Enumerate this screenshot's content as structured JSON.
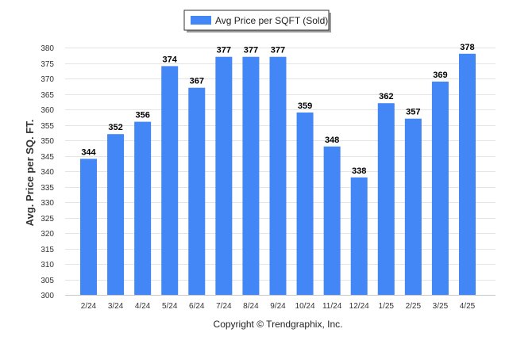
{
  "chart_data": {
    "type": "bar",
    "categories": [
      "2/24",
      "3/24",
      "4/24",
      "5/24",
      "6/24",
      "7/24",
      "8/24",
      "9/24",
      "10/24",
      "11/24",
      "12/24",
      "1/25",
      "2/25",
      "3/25",
      "4/25"
    ],
    "series": [
      {
        "name": "Avg Price per SQFT (Sold)",
        "values": [
          344,
          352,
          356,
          374,
          367,
          377,
          377,
          377,
          359,
          348,
          338,
          362,
          357,
          369,
          378
        ],
        "color": "#4287f5"
      }
    ],
    "title": "",
    "xlabel": "",
    "ylabel": "Avg. Price per SQ. FT.",
    "ylim": [
      300,
      380
    ],
    "ytick_step": 5,
    "grid": true,
    "legend_position": "top-center",
    "data_labels": true
  },
  "footer": {
    "copyright": "Copyright © Trendgraphix, Inc."
  }
}
